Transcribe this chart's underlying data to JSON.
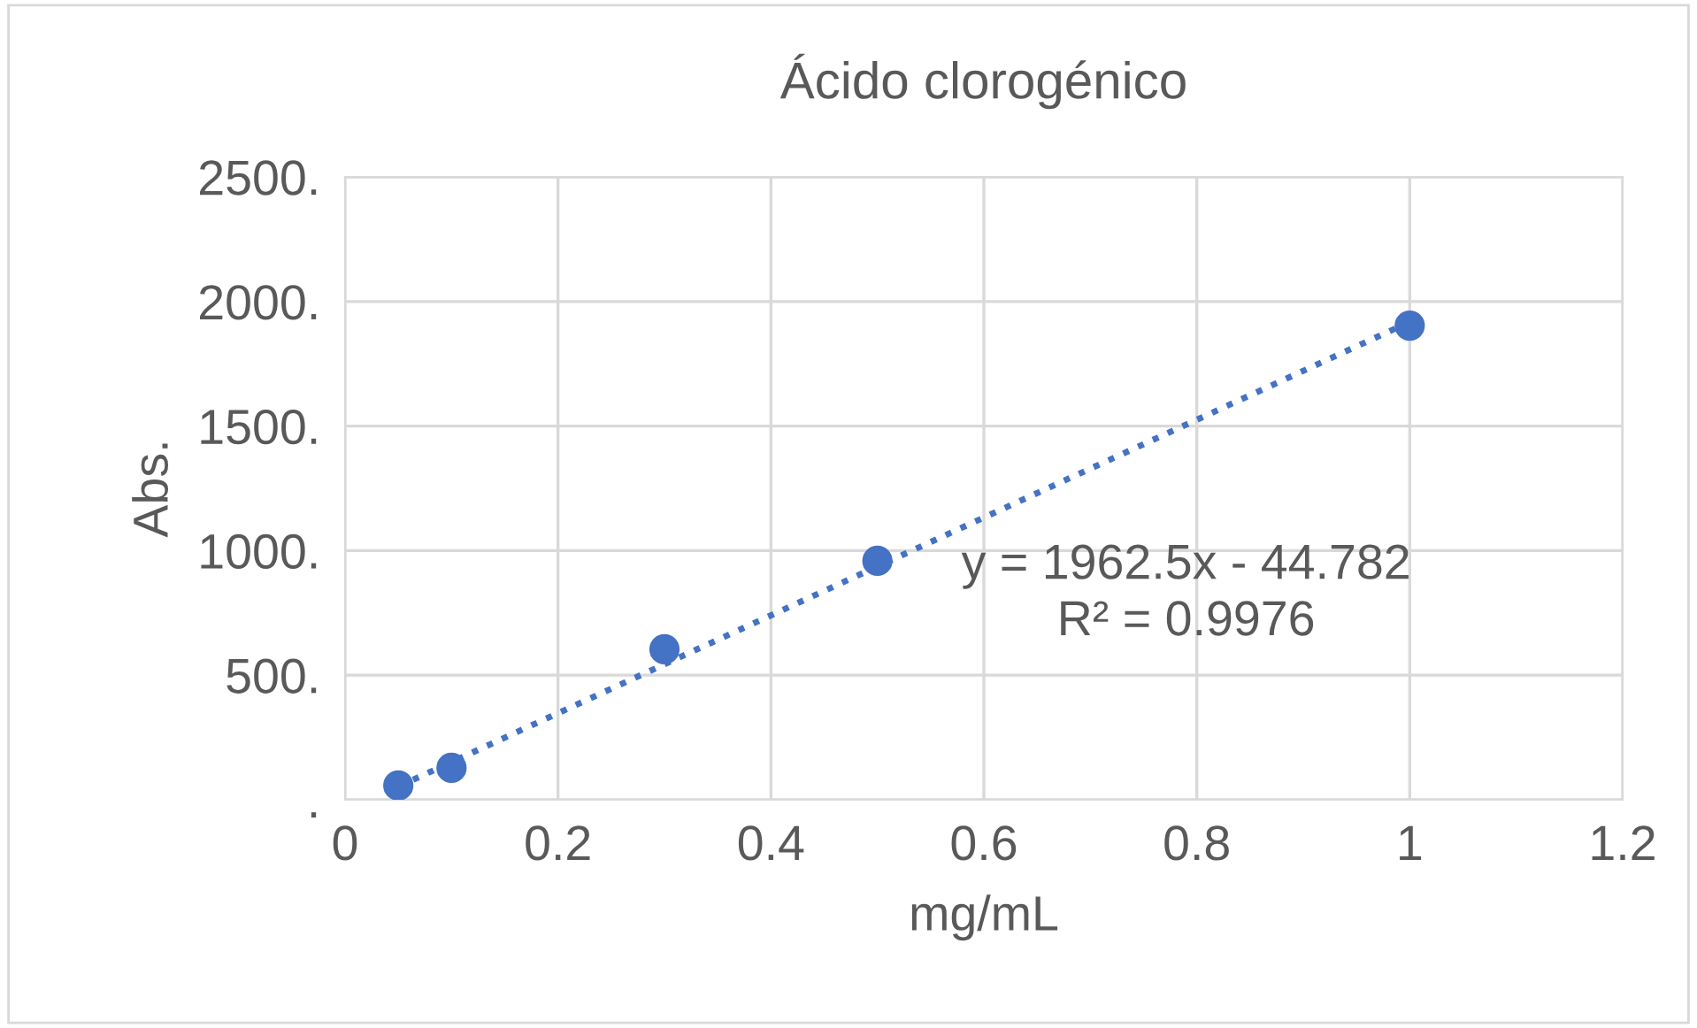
{
  "chart_data": {
    "type": "scatter",
    "title": "Ácido clorogénico",
    "xlabel": "mg/mL",
    "ylabel": "Abs.",
    "series": [
      {
        "color": "#4472c4",
        "marker": "circle",
        "x": [
          0.05,
          0.1,
          0.3,
          0.5,
          1
        ],
        "values": [
          57,
          128,
          604,
          959,
          1903
        ]
      },
      {
        "type": "line",
        "color": "#4472c4",
        "line_style": "dotted",
        "marker": "none",
        "x": [
          0.05,
          1
        ],
        "values": [
          53,
          1918
        ]
      }
    ],
    "xlim": [
      0,
      1.2
    ],
    "xticks": [
      0,
      0.2,
      0.4,
      0.6,
      0.8,
      1,
      1.2
    ],
    "ylim": [
      0,
      2500
    ],
    "yticks": [
      {
        "value": 0,
        "label": "."
      },
      {
        "value": 500,
        "label": "500."
      },
      {
        "value": 1000,
        "label": "1000."
      },
      {
        "value": 1500,
        "label": "1500."
      },
      {
        "value": 2000,
        "label": "2000."
      },
      {
        "value": 2500,
        "label": "2500."
      }
    ],
    "annotations": [
      "y = 1962.5x - 44.782\nR² = 0.9976"
    ],
    "grid": true,
    "legend": false
  }
}
